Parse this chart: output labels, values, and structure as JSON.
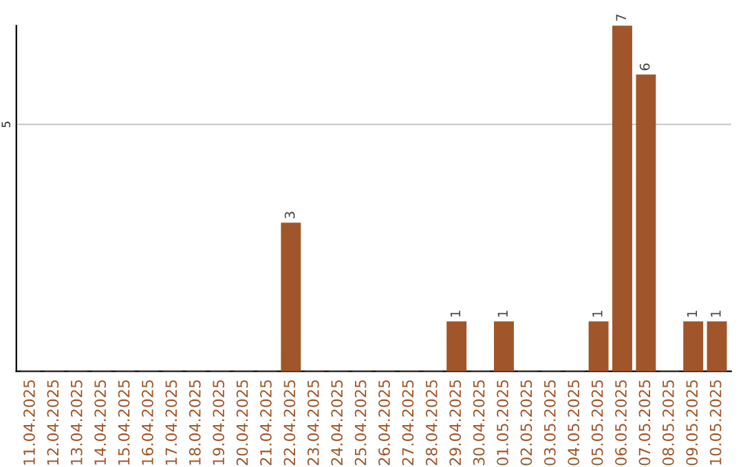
{
  "chart_data": {
    "type": "bar",
    "categories": [
      "11.04.2025",
      "12.04.2025",
      "13.04.2025",
      "14.04.2025",
      "15.04.2025",
      "16.04.2025",
      "17.04.2025",
      "18.04.2025",
      "19.04.2025",
      "20.04.2025",
      "21.04.2025",
      "22.04.2025",
      "23.04.2025",
      "24.04.2025",
      "25.04.2025",
      "26.04.2025",
      "27.04.2025",
      "28.04.2025",
      "29.04.2025",
      "30.04.2025",
      "01.05.2025",
      "02.05.2025",
      "03.05.2025",
      "04.05.2025",
      "05.05.2025",
      "06.05.2025",
      "07.05.2025",
      "08.05.2025",
      "09.05.2025",
      "10.05.2025"
    ],
    "values": [
      0,
      0,
      0,
      0,
      0,
      0,
      0,
      0,
      0,
      0,
      0,
      3,
      0,
      0,
      0,
      0,
      0,
      0,
      1,
      0,
      1,
      0,
      0,
      0,
      1,
      7,
      6,
      0,
      1,
      1
    ],
    "value_labels": [
      null,
      null,
      null,
      null,
      null,
      null,
      null,
      null,
      null,
      null,
      null,
      "3",
      null,
      null,
      null,
      null,
      null,
      null,
      "1",
      null,
      "1",
      null,
      null,
      null,
      "1",
      "7",
      "6",
      null,
      "1",
      "1"
    ],
    "color": "#a0562a",
    "ylim": [
      0,
      7
    ],
    "yticks": [
      5
    ],
    "grid": "y"
  }
}
